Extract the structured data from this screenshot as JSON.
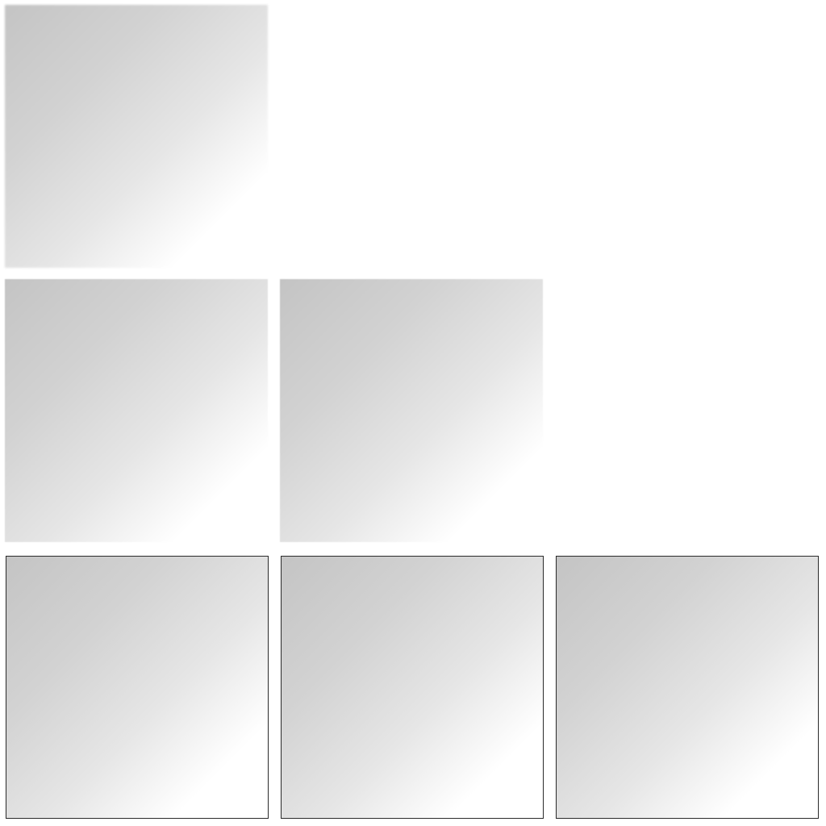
{
  "grid": {
    "rows": [
      {
        "tiles": [
          {
            "label": ""
          }
        ]
      },
      {
        "tiles": [
          {
            "label": ""
          },
          {
            "label": ""
          }
        ]
      },
      {
        "tiles": [
          {
            "label": ""
          },
          {
            "label": ""
          },
          {
            "label": ""
          }
        ]
      }
    ]
  },
  "colors": {
    "background": "#ffffff",
    "gradient_start": "#c4c4c4",
    "gradient_end": "#ffffff",
    "sharp_border": "#2a2a2a"
  }
}
